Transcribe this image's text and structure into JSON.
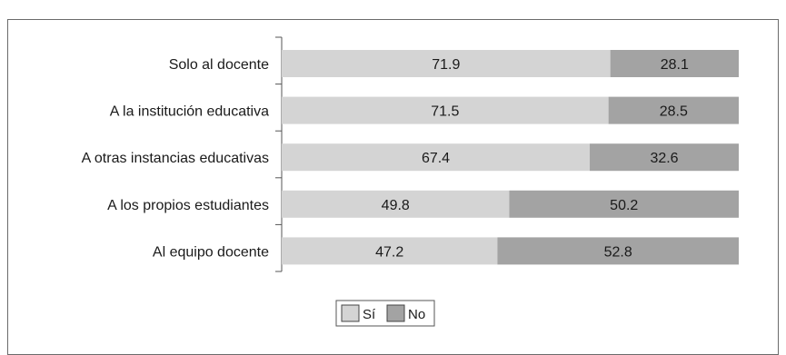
{
  "chart_data": {
    "type": "bar",
    "orientation": "horizontal",
    "stacked": true,
    "percent_stacked": true,
    "categories": [
      "Solo al docente",
      "A la institución educativa",
      "A otras instancias educativas",
      "A los propios estudiantes",
      "Al equipo docente"
    ],
    "series": [
      {
        "name": "Sí",
        "values": [
          71.9,
          71.5,
          67.4,
          49.8,
          47.2
        ],
        "color": "#d4d4d4"
      },
      {
        "name": "No",
        "values": [
          28.1,
          28.5,
          32.6,
          50.2,
          52.8
        ],
        "color": "#a3a3a3"
      }
    ],
    "xlim": [
      0,
      100
    ],
    "grid": false,
    "legend_position": "bottom-center",
    "title": "",
    "xlabel": "",
    "ylabel": ""
  }
}
